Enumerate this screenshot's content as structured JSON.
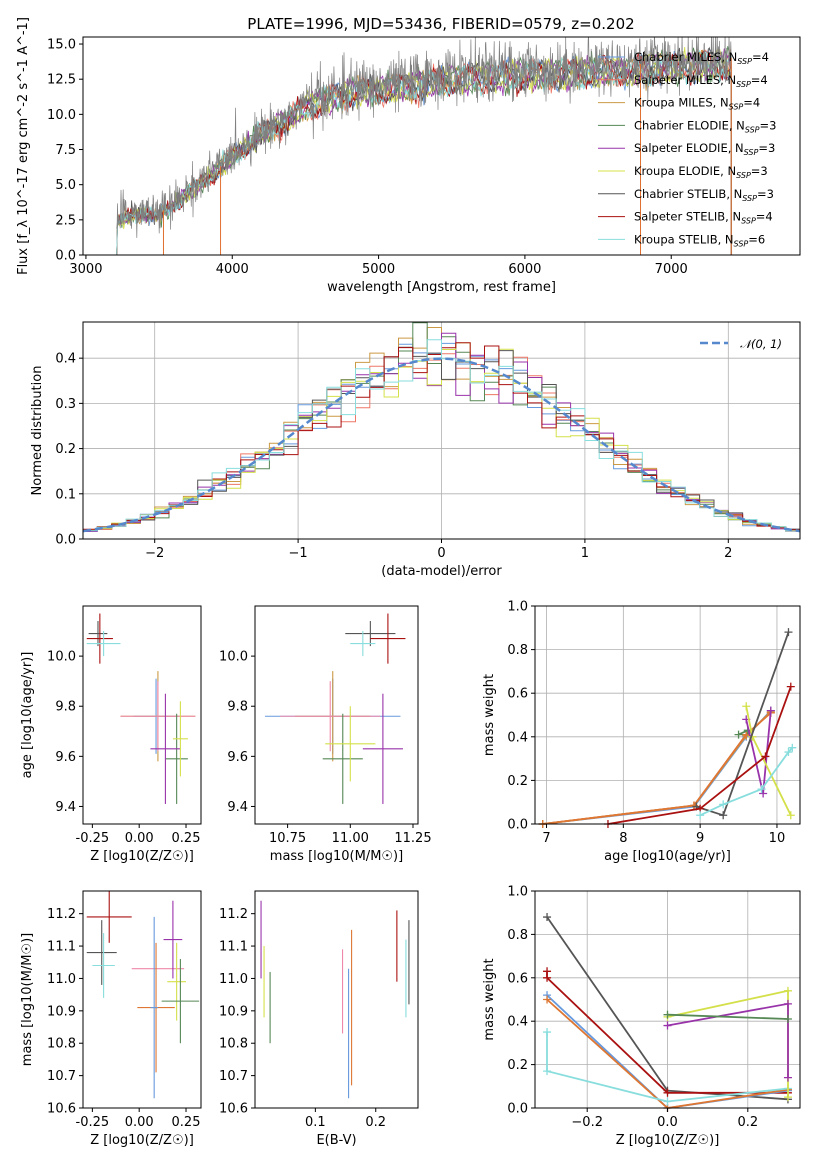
{
  "figure": {
    "title": "PLATE=1996, MJD=53436, FIBERID=0579, z=0.202"
  },
  "colors": {
    "Chabrier MILES": "#6699dd",
    "Salpeter MILES": "#ee7766",
    "Kroupa MILES": "#cc9944",
    "Chabrier ELODIE": "#558855",
    "Salpeter ELODIE": "#9933aa",
    "Kroupa ELODIE": "#d4e04a",
    "Chabrier STELIB": "#555555",
    "Salpeter STELIB": "#aa1111",
    "Kroupa STELIB": "#88dddd",
    "gaussian": "#5588cc",
    "orange": "#dd7733",
    "pink": "#ee88aa",
    "spectrum": "#808080"
  },
  "legend_spectrum": [
    {
      "text": "Chabrier MILES, N$_{SSP}$=4",
      "main": "Chabrier MILES, N",
      "sub": "SSP",
      "suffix": "=4",
      "key": "Chabrier MILES"
    },
    {
      "text": "Salpeter MILES, N$_{SSP}$=4",
      "main": "Salpeter MILES, N",
      "sub": "SSP",
      "suffix": "=4",
      "key": "Salpeter MILES"
    },
    {
      "text": "Kroupa MILES, N$_{SSP}$=4",
      "main": "Kroupa MILES, N",
      "sub": "SSP",
      "suffix": "=4",
      "key": "Kroupa MILES"
    },
    {
      "text": "Chabrier ELODIE, N$_{SSP}$=3",
      "main": "Chabrier ELODIE, N",
      "sub": "SSP",
      "suffix": "=3",
      "key": "Chabrier ELODIE"
    },
    {
      "text": "Salpeter ELODIE, N$_{SSP}$=3",
      "main": "Salpeter ELODIE, N",
      "sub": "SSP",
      "suffix": "=3",
      "key": "Salpeter ELODIE"
    },
    {
      "text": "Kroupa ELODIE, N$_{SSP}$=3",
      "main": "Kroupa ELODIE, N",
      "sub": "SSP",
      "suffix": "=3",
      "key": "Kroupa ELODIE"
    },
    {
      "text": "Chabrier STELIB, N$_{SSP}$=3",
      "main": "Chabrier STELIB, N",
      "sub": "SSP",
      "suffix": "=3",
      "key": "Chabrier STELIB"
    },
    {
      "text": "Salpeter STELIB, N$_{SSP}$=4",
      "main": "Salpeter STELIB, N",
      "sub": "SSP",
      "suffix": "=4",
      "key": "Salpeter STELIB"
    },
    {
      "text": "Kroupa STELIB, N$_{SSP}$=6",
      "main": "Kroupa STELIB, N",
      "sub": "SSP",
      "suffix": "=6",
      "key": "Kroupa STELIB"
    }
  ],
  "chart_data": [
    {
      "id": "spectrum",
      "type": "line",
      "title": "PLATE=1996, MJD=53436, FIBERID=0579, z=0.202",
      "xlabel": "wavelength [Angstrom, rest frame]",
      "ylabel": "Flux [f_λ 10^-17 erg cm^-2 s^-1 A^-1]",
      "xlim": [
        2980,
        7880
      ],
      "ylim": [
        0,
        15.5
      ],
      "xticks": [
        3000,
        4000,
        5000,
        6000,
        7000
      ],
      "yticks": [
        0.0,
        2.5,
        5.0,
        7.5,
        10.0,
        12.5,
        15.0
      ],
      "grid": false,
      "legend_position": "right",
      "spectrum_envelope": {
        "x": [
          3210,
          3300,
          3400,
          3500,
          3600,
          3700,
          3800,
          3900,
          4000,
          4100,
          4200,
          4300,
          4400,
          4500,
          4600,
          4700,
          4800,
          4900,
          5000,
          5100,
          5200,
          5300,
          5400,
          5500,
          5600,
          5700,
          5800,
          5900,
          6000,
          6100,
          6200,
          6300,
          6400,
          6500,
          6600,
          6700,
          6800,
          6900,
          7000,
          7100,
          7200,
          7300,
          7400
        ],
        "y": [
          2.5,
          2.9,
          3.0,
          3.0,
          3.6,
          4.6,
          5.4,
          6.1,
          7.2,
          8.0,
          8.8,
          9.4,
          10.0,
          10.8,
          11.2,
          11.5,
          11.8,
          12.0,
          12.0,
          12.2,
          12.3,
          12.5,
          12.7,
          12.8,
          12.9,
          13.0,
          13.0,
          13.1,
          13.2,
          13.2,
          13.2,
          13.3,
          13.3,
          13.4,
          13.6,
          13.4,
          13.6,
          13.7,
          13.8,
          13.8,
          13.9,
          14.0,
          14.0
        ]
      }
    },
    {
      "id": "residuals",
      "type": "line",
      "xlabel": "(data-model)/error",
      "ylabel": "Normed distribution",
      "xlim": [
        -2.5,
        2.5
      ],
      "ylim": [
        0,
        0.48
      ],
      "xticks": [
        -2,
        -1,
        0,
        1,
        2
      ],
      "yticks": [
        0.0,
        0.1,
        0.2,
        0.3,
        0.4
      ],
      "grid": true,
      "legend_position": "top-right",
      "legend": "N(0,1)",
      "series": [
        {
          "name": "N(0,1)",
          "mean": 0,
          "sigma": 1
        }
      ]
    },
    {
      "id": "Z-age",
      "type": "scatter",
      "xlabel": "Z [log10(Z/Z☉)]",
      "ylabel": "age [log10(age/yr)]",
      "xlim": [
        -0.3,
        0.33
      ],
      "ylim": [
        9.33,
        10.2
      ],
      "xticks": [
        -0.25,
        0.0,
        0.25
      ],
      "xticklabels": [
        "-0.25",
        "0.00",
        "0.25"
      ],
      "yticks": [
        9.4,
        9.6,
        9.8,
        10.0
      ],
      "points": [
        {
          "key": "Chabrier STELIB",
          "x": -0.22,
          "y": 10.09,
          "xe": 0.05,
          "ye": 0.05
        },
        {
          "key": "Salpeter STELIB",
          "x": -0.21,
          "y": 10.07,
          "xe": 0.07,
          "ye": 0.1
        },
        {
          "key": "Kroupa STELIB",
          "x": -0.19,
          "y": 10.05,
          "xe": 0.09,
          "ye": 0.05
        },
        {
          "key": "Chabrier MILES",
          "x": 0.09,
          "y": 9.76,
          "xe": 0.12,
          "ye": 0.15
        },
        {
          "key": "Kroupa MILES",
          "x": 0.1,
          "y": 9.76,
          "xe": 0.2,
          "ye": 0.18
        },
        {
          "key": "pink",
          "x": 0.1,
          "y": 9.76,
          "xe": 0.2,
          "ye": 0.14
        },
        {
          "key": "Chabrier ELODIE",
          "x": 0.2,
          "y": 9.59,
          "xe": 0.06,
          "ye": 0.18
        },
        {
          "key": "Salpeter ELODIE",
          "x": 0.14,
          "y": 9.63,
          "xe": 0.08,
          "ye": 0.22
        },
        {
          "key": "Kroupa ELODIE",
          "x": 0.22,
          "y": 9.67,
          "xe": 0.04,
          "ye": 0.15
        }
      ]
    },
    {
      "id": "mass-age",
      "type": "scatter",
      "xlabel": "mass [log10(M/M☉)]",
      "ylabel": "",
      "xlim": [
        10.62,
        11.27
      ],
      "ylim": [
        9.33,
        10.2
      ],
      "xticks": [
        10.75,
        11.0,
        11.25
      ],
      "xticklabels": [
        "10.75",
        "11.00",
        "11.25"
      ],
      "yticks": [
        9.4,
        9.6,
        9.8,
        10.0
      ],
      "points": [
        {
          "key": "Chabrier STELIB",
          "x": 11.08,
          "y": 10.09,
          "xe": 0.1,
          "ye": 0.05
        },
        {
          "key": "Salpeter STELIB",
          "x": 11.15,
          "y": 10.07,
          "xe": 0.07,
          "ye": 0.1
        },
        {
          "key": "Kroupa STELIB",
          "x": 11.05,
          "y": 10.05,
          "xe": 0.05,
          "ye": 0.05
        },
        {
          "key": "Chabrier MILES",
          "x": 10.93,
          "y": 9.76,
          "xe": 0.27,
          "ye": 0.15
        },
        {
          "key": "Kroupa MILES",
          "x": 10.93,
          "y": 9.76,
          "xe": 0.15,
          "ye": 0.18
        },
        {
          "key": "pink",
          "x": 10.92,
          "y": 9.76,
          "xe": 0.2,
          "ye": 0.14
        },
        {
          "key": "Chabrier ELODIE",
          "x": 10.97,
          "y": 9.59,
          "xe": 0.08,
          "ye": 0.18
        },
        {
          "key": "Salpeter ELODIE",
          "x": 11.13,
          "y": 9.63,
          "xe": 0.08,
          "ye": 0.22
        },
        {
          "key": "Kroupa ELODIE",
          "x": 11.0,
          "y": 9.65,
          "xe": 0.1,
          "ye": 0.15
        }
      ]
    },
    {
      "id": "age-weight",
      "type": "line",
      "xlabel": "age [log10(age/yr)]",
      "ylabel": "mass weight",
      "xlim": [
        6.85,
        10.3
      ],
      "ylim": [
        0,
        1.0
      ],
      "xticks": [
        7,
        8,
        9,
        10
      ],
      "yticks": [
        0.0,
        0.2,
        0.4,
        0.6,
        0.8,
        1.0
      ],
      "grid": true,
      "series": [
        {
          "key": "Chabrier MILES",
          "x": [
            6.95,
            8.92,
            9.6,
            9.92
          ],
          "y": [
            0.0,
            0.08,
            0.4,
            0.52
          ]
        },
        {
          "key": "Salpeter MILES",
          "x": [
            6.95,
            8.92,
            9.6,
            9.92
          ],
          "y": [
            0.0,
            0.085,
            0.41,
            0.51
          ]
        },
        {
          "key": "Kroupa MILES",
          "x": [
            6.95,
            8.92,
            9.6,
            9.92
          ],
          "y": [
            0.0,
            0.085,
            0.405,
            0.515
          ]
        },
        {
          "key": "orange",
          "x": [
            6.95,
            8.92,
            9.6,
            9.92
          ],
          "y": [
            0.0,
            0.085,
            0.41,
            0.51
          ]
        },
        {
          "key": "Chabrier ELODIE",
          "x": [
            9.5,
            9.62
          ],
          "y": [
            0.41,
            0.43
          ]
        },
        {
          "key": "Salpeter ELODIE",
          "x": [
            9.6,
            9.82,
            9.92
          ],
          "y": [
            0.48,
            0.14,
            0.52
          ]
        },
        {
          "key": "Kroupa ELODIE",
          "x": [
            9.6,
            9.68,
            10.18
          ],
          "y": [
            0.54,
            0.4,
            0.04
          ]
        },
        {
          "key": "Chabrier STELIB",
          "x": [
            8.95,
            9.3,
            10.15
          ],
          "y": [
            0.08,
            0.04,
            0.88
          ]
        },
        {
          "key": "Salpeter STELIB",
          "x": [
            7.8,
            9.0,
            9.85,
            10.18
          ],
          "y": [
            0.0,
            0.07,
            0.31,
            0.63
          ]
        },
        {
          "key": "Kroupa STELIB",
          "x": [
            9.0,
            9.3,
            9.8,
            10.15,
            10.2
          ],
          "y": [
            0.04,
            0.09,
            0.16,
            0.33,
            0.35
          ]
        }
      ]
    },
    {
      "id": "Z-mass",
      "type": "scatter",
      "xlabel": "Z [log10(Z/Z☉)]",
      "ylabel": "mass [log10(M/M☉)]",
      "xlim": [
        -0.3,
        0.33
      ],
      "ylim": [
        10.6,
        11.27
      ],
      "xticks": [
        -0.25,
        0.0,
        0.25
      ],
      "xticklabels": [
        "-0.25",
        "0.00",
        "0.25"
      ],
      "yticks": [
        10.6,
        10.7,
        10.8,
        10.9,
        11.0,
        11.1,
        11.2
      ],
      "points": [
        {
          "key": "Salpeter STELIB",
          "x": -0.16,
          "y": 11.19,
          "xe": 0.12,
          "ye": 0.08
        },
        {
          "key": "Chabrier STELIB",
          "x": -0.2,
          "y": 11.08,
          "xe": 0.08,
          "ye": 0.1
        },
        {
          "key": "Kroupa STELIB",
          "x": -0.19,
          "y": 11.04,
          "xe": 0.06,
          "ye": 0.1
        },
        {
          "key": "pink",
          "x": 0.1,
          "y": 11.03,
          "xe": 0.14,
          "ye": 0.0
        },
        {
          "key": "Salpeter ELODIE",
          "x": 0.18,
          "y": 11.12,
          "xe": 0.05,
          "ye": 0.12
        },
        {
          "key": "Kroupa ELODIE",
          "x": 0.2,
          "y": 10.99,
          "xe": 0.05,
          "ye": 0.12
        },
        {
          "key": "Chabrier ELODIE",
          "x": 0.22,
          "y": 10.93,
          "xe": 0.1,
          "ye": 0.13
        },
        {
          "key": "orange",
          "x": 0.09,
          "y": 10.91,
          "xe": 0.1,
          "ye": 0.2
        },
        {
          "key": "Chabrier MILES",
          "x": 0.08,
          "y": 10.91,
          "xe": 0.02,
          "ye": 0.28
        }
      ]
    },
    {
      "id": "EBV-mass",
      "type": "scatter",
      "xlabel": "E(B-V)",
      "ylabel": "",
      "xlim": [
        0.0,
        0.27
      ],
      "ylim": [
        10.6,
        11.27
      ],
      "xticks": [
        0.1,
        0.2
      ],
      "xticklabels": [
        "0.1",
        "0.2"
      ],
      "yticks": [
        10.6,
        10.7,
        10.8,
        10.9,
        11.0,
        11.1,
        11.2
      ],
      "points": [
        {
          "key": "Salpeter ELODIE",
          "x": 0.01,
          "y": 11.12,
          "xe": 0.0,
          "ye": 0.12
        },
        {
          "key": "Kroupa ELODIE",
          "x": 0.015,
          "y": 10.99,
          "xe": 0.0,
          "ye": 0.11
        },
        {
          "key": "Chabrier ELODIE",
          "x": 0.025,
          "y": 10.91,
          "xe": 0.0,
          "ye": 0.11
        },
        {
          "key": "pink",
          "x": 0.145,
          "y": 10.96,
          "xe": 0.0,
          "ye": 0.13
        },
        {
          "key": "orange",
          "x": 0.16,
          "y": 10.91,
          "xe": 0.0,
          "ye": 0.24
        },
        {
          "key": "Chabrier MILES",
          "x": 0.155,
          "y": 10.83,
          "xe": 0.0,
          "ye": 0.2
        },
        {
          "key": "Salpeter STELIB",
          "x": 0.235,
          "y": 11.1,
          "xe": 0.0,
          "ye": 0.11
        },
        {
          "key": "Chabrier STELIB",
          "x": 0.255,
          "y": 11.05,
          "xe": 0.0,
          "ye": 0.13
        },
        {
          "key": "Kroupa STELIB",
          "x": 0.25,
          "y": 11.0,
          "xe": 0.0,
          "ye": 0.12
        }
      ]
    },
    {
      "id": "Z-weight",
      "type": "line",
      "xlabel": "Z [log10(Z/Z☉)]",
      "ylabel": "mass weight",
      "xlim": [
        -0.33,
        0.33
      ],
      "ylim": [
        0,
        1.0
      ],
      "xticks": [
        -0.2,
        0.0,
        0.2
      ],
      "xticklabels": [
        "−0.2",
        "0.0",
        "0.2"
      ],
      "yticks": [
        0.0,
        0.2,
        0.4,
        0.6,
        0.8,
        1.0
      ],
      "grid": true,
      "series": [
        {
          "key": "Chabrier STELIB",
          "x": [
            -0.3,
            0.0,
            0.3
          ],
          "y": [
            0.88,
            0.08,
            0.04
          ]
        },
        {
          "key": "Salpeter STELIB",
          "x": [
            -0.3,
            -0.3,
            0.0,
            0.3
          ],
          "y": [
            0.63,
            0.6,
            0.07,
            0.07
          ]
        },
        {
          "key": "Chabrier MILES",
          "x": [
            -0.3,
            0.0,
            0.3
          ],
          "y": [
            0.52,
            0.0,
            0.08
          ]
        },
        {
          "key": "orange",
          "x": [
            -0.3,
            0.0,
            0.3
          ],
          "y": [
            0.5,
            0.0,
            0.085
          ]
        },
        {
          "key": "Kroupa STELIB",
          "x": [
            -0.3,
            -0.3,
            0.0,
            0.3
          ],
          "y": [
            0.35,
            0.17,
            0.03,
            0.09
          ]
        },
        {
          "key": "Kroupa ELODIE",
          "x": [
            0.0,
            0.3,
            0.3
          ],
          "y": [
            0.42,
            0.54,
            0.05
          ]
        },
        {
          "key": "Salpeter ELODIE",
          "x": [
            0.0,
            0.3,
            0.3
          ],
          "y": [
            0.38,
            0.48,
            0.14
          ]
        },
        {
          "key": "Chabrier ELODIE",
          "x": [
            0.0,
            0.3
          ],
          "y": [
            0.43,
            0.41
          ]
        }
      ]
    }
  ]
}
